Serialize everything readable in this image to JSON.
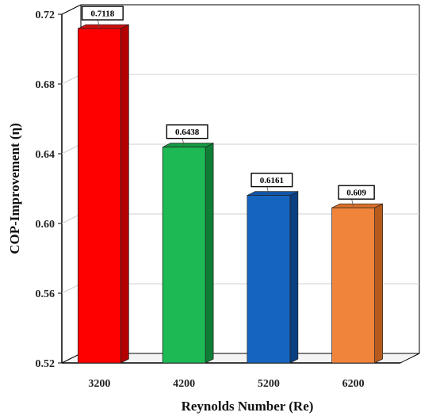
{
  "chart_data": {
    "type": "bar",
    "title": "",
    "xlabel": "Reynolds Number (Re)",
    "ylabel": "COP-Improvement (η)",
    "categories": [
      "3200",
      "4200",
      "5200",
      "6200"
    ],
    "values": [
      0.7118,
      0.6438,
      0.6161,
      0.609
    ],
    "data_labels": [
      "0.7118",
      "0.6438",
      "0.6161",
      "0.609"
    ],
    "ylim": [
      0.52,
      0.72
    ],
    "yticks": [
      "0.52",
      "0.56",
      "0.60",
      "0.64",
      "0.68",
      "0.72"
    ],
    "grid": true,
    "legend": "none",
    "colors": [
      {
        "front": "#ff0000",
        "side": "#b30000",
        "top": "#cc1010"
      },
      {
        "front": "#1db954",
        "side": "#0f7d35",
        "top": "#169a44"
      },
      {
        "front": "#1565c0",
        "side": "#0a3f80",
        "top": "#1155a8"
      },
      {
        "front": "#f0843a",
        "side": "#b85a1c",
        "top": "#d9702a"
      }
    ]
  }
}
